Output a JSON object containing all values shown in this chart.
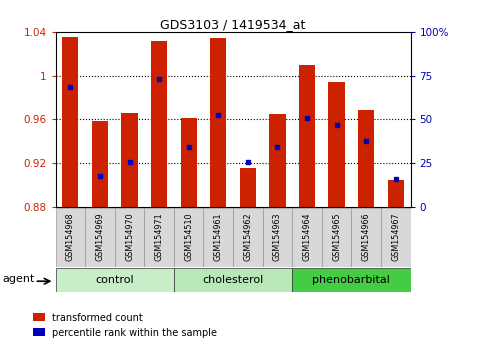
{
  "title": "GDS3103 / 1419534_at",
  "samples": [
    "GSM154968",
    "GSM154969",
    "GSM154970",
    "GSM154971",
    "GSM154510",
    "GSM154961",
    "GSM154962",
    "GSM154963",
    "GSM154964",
    "GSM154965",
    "GSM154966",
    "GSM154967"
  ],
  "bar_values": [
    1.035,
    0.959,
    0.966,
    1.032,
    0.961,
    1.034,
    0.916,
    0.965,
    1.01,
    0.994,
    0.969,
    0.905
  ],
  "percentile_values": [
    0.99,
    0.908,
    0.921,
    0.997,
    0.935,
    0.964,
    0.921,
    0.935,
    0.961,
    0.955,
    0.94,
    0.906
  ],
  "bar_bottom": 0.88,
  "ylim_left": [
    0.88,
    1.04
  ],
  "ylim_right": [
    0,
    100
  ],
  "yticks_left": [
    0.88,
    0.92,
    0.96,
    1.0,
    1.04
  ],
  "ytick_labels_left": [
    "0.88",
    "0.92",
    "0.96",
    "1",
    "1.04"
  ],
  "yticks_right": [
    0,
    25,
    50,
    75,
    100
  ],
  "ytick_labels_right": [
    "0",
    "25",
    "50",
    "75",
    "100%"
  ],
  "bar_color": "#cc2200",
  "dot_color": "#0000bb",
  "groups": [
    {
      "label": "control",
      "start": 0,
      "end": 3,
      "color": "#c8eec8"
    },
    {
      "label": "cholesterol",
      "start": 4,
      "end": 7,
      "color": "#b8e8b8"
    },
    {
      "label": "phenobarbital",
      "start": 8,
      "end": 11,
      "color": "#44cc44"
    }
  ],
  "agent_label": "agent",
  "legend_bar_label": "transformed count",
  "legend_dot_label": "percentile rank within the sample",
  "bg_color": "#ffffff",
  "sample_box_color": "#d8d8d8"
}
